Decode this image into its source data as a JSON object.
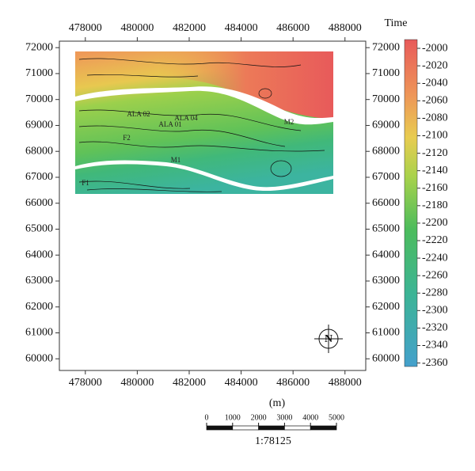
{
  "map": {
    "xlim": [
      477000,
      488800
    ],
    "xticks": [
      478000,
      480000,
      482000,
      484000,
      486000,
      488000
    ],
    "ylim": [
      59550,
      72250
    ],
    "yticks": [
      60000,
      61000,
      62000,
      63000,
      64000,
      65000,
      66000,
      67000,
      68000,
      69000,
      70000,
      71000,
      72000
    ],
    "x_label": "(m)",
    "colorbar": {
      "title": "Time",
      "lim": [
        -1990,
        -2364
      ],
      "ticks": [
        -2000,
        -2020,
        -2040,
        -2060,
        -2080,
        -2100,
        -2120,
        -2140,
        -2160,
        -2180,
        -2200,
        -2220,
        -2240,
        -2260,
        -2280,
        -2300,
        -2320,
        -2340,
        -2360
      ]
    },
    "scale_bar": {
      "ticks": [
        0,
        1000,
        2000,
        3000,
        4000,
        5000
      ],
      "ratio": "1:78125"
    },
    "compass": "N",
    "labels": [
      "ALA 02",
      "ALA 01",
      "ALA 04",
      "M1",
      "M2",
      "F1",
      "F2"
    ]
  }
}
